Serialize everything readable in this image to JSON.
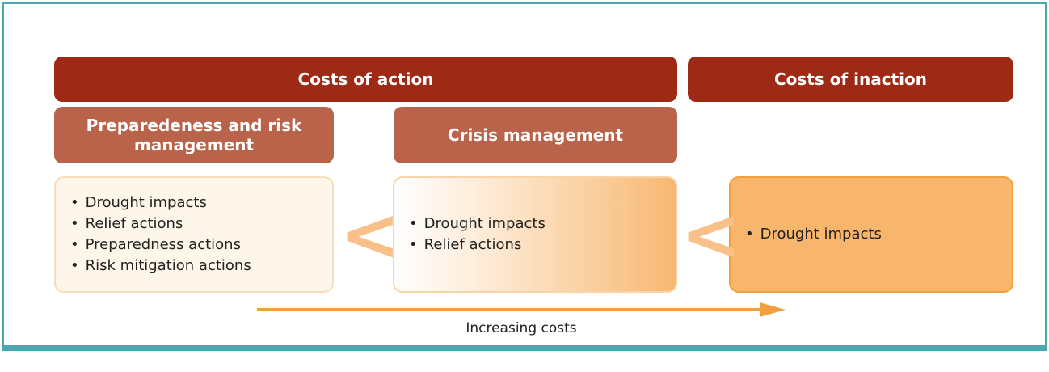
{
  "headers": [
    {
      "label": "Costs of action"
    },
    {
      "label": "Costs of inaction"
    }
  ],
  "subheaders": [
    {
      "label": "Preparedeness and risk management"
    },
    {
      "label": "Crisis management"
    }
  ],
  "boxes": [
    {
      "items": [
        "Drought impacts",
        "Relief actions",
        "Preparedness actions",
        "Risk mitigation actions"
      ]
    },
    {
      "items": [
        "Drought impacts",
        "Relief actions"
      ]
    },
    {
      "items": [
        "Drought impacts"
      ]
    }
  ],
  "comparators": [
    "<",
    "<"
  ],
  "arrow": {
    "label": "Increasing costs"
  }
}
